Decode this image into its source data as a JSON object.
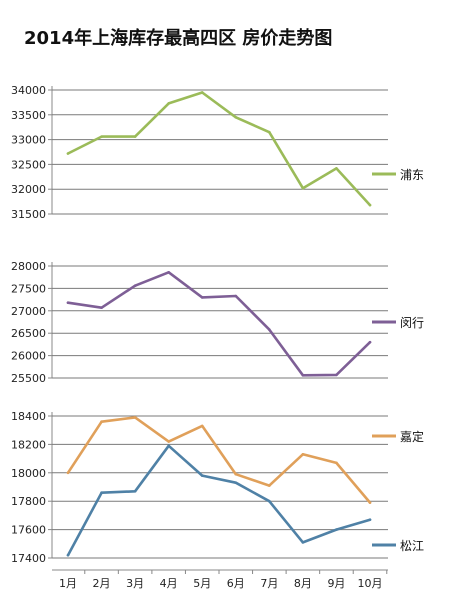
{
  "chart_data": {
    "type": "line",
    "title": "2014年上海库存最高四区 房价走势图",
    "categories": [
      "1月",
      "2月",
      "3月",
      "4月",
      "5月",
      "6月",
      "7月",
      "8月",
      "9月",
      "10月"
    ],
    "panels": [
      {
        "ylim": [
          31500,
          34000
        ],
        "yticks": [
          34000,
          33500,
          33000,
          32500,
          32000,
          31500
        ],
        "grid": true,
        "series": [
          {
            "name": "浦东",
            "color": "#9bbb59",
            "values": [
              32720,
              33060,
              33060,
              33730,
              33950,
              33450,
              33150,
              32020,
              32420,
              31680
            ]
          }
        ]
      },
      {
        "ylim": [
          25500,
          28000
        ],
        "yticks": [
          28000,
          27500,
          27000,
          26500,
          26000,
          25500
        ],
        "grid": true,
        "series": [
          {
            "name": "闵行",
            "color": "#7e5f96",
            "values": [
              27180,
              27070,
              27560,
              27860,
              27300,
              27330,
              26580,
              25560,
              25570,
              26300
            ]
          }
        ]
      },
      {
        "ylim": [
          17400,
          18400
        ],
        "yticks": [
          18400,
          18200,
          18000,
          17800,
          17600,
          17400
        ],
        "grid": true,
        "series": [
          {
            "name": "嘉定",
            "color": "#e0a05a",
            "values": [
              18000,
              18360,
              18390,
              18220,
              18330,
              17990,
              17910,
              18130,
              18070,
              17790
            ]
          },
          {
            "name": "松江",
            "color": "#4f81a6",
            "values": [
              17420,
              17860,
              17870,
              18190,
              17980,
              17930,
              17800,
              17510,
              17600,
              17670
            ]
          }
        ]
      }
    ]
  }
}
